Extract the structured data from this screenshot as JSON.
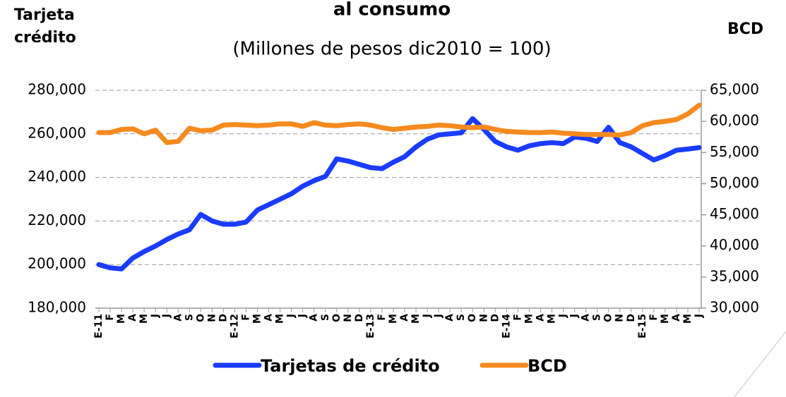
{
  "chart_data": {
    "type": "line",
    "title": "al consumo",
    "subtitle": "(Millones de pesos dic2010 = 100)",
    "ylabel": "Tarjeta crédito",
    "y2label": "BCD",
    "categories": [
      "E-11",
      "F",
      "M",
      "A",
      "M",
      "J",
      "J",
      "A",
      "S",
      "O",
      "N",
      "D",
      "E-12",
      "F",
      "M",
      "A",
      "M",
      "J",
      "J",
      "A",
      "S",
      "O",
      "N",
      "D",
      "E-13",
      "F",
      "M",
      "A",
      "M",
      "J",
      "J",
      "A",
      "S",
      "O",
      "N",
      "D",
      "E-14",
      "F",
      "M",
      "A",
      "M",
      "J",
      "J",
      "A",
      "S",
      "O",
      "N",
      "D",
      "E-15",
      "F",
      "M",
      "A",
      "M",
      "J"
    ],
    "series": [
      {
        "name": "Tarjetas de crédito",
        "color": "#1a3cff",
        "axis": "y",
        "values": [
          200000,
          198500,
          198000,
          203000,
          206000,
          208500,
          211500,
          214000,
          216000,
          223000,
          220000,
          218500,
          218500,
          219500,
          225000,
          227500,
          230000,
          232500,
          236000,
          238500,
          240500,
          248500,
          247500,
          246000,
          244500,
          244000,
          247000,
          249500,
          254000,
          257500,
          259500,
          260000,
          260500,
          267000,
          262000,
          256500,
          254000,
          252500,
          254500,
          255500,
          256000,
          255500,
          258500,
          258000,
          256500,
          263000,
          256000,
          254000,
          251000,
          248000,
          250000,
          252500,
          253000,
          253700
        ]
      },
      {
        "name": "BCD",
        "color": "#f58a1f",
        "axis": "y2",
        "values": [
          58200,
          58200,
          58700,
          58800,
          58000,
          58600,
          56600,
          56800,
          58900,
          58500,
          58600,
          59400,
          59500,
          59400,
          59300,
          59400,
          59600,
          59600,
          59200,
          59800,
          59400,
          59300,
          59500,
          59600,
          59400,
          59000,
          58700,
          58900,
          59100,
          59200,
          59400,
          59300,
          59100,
          59000,
          59100,
          58700,
          58400,
          58300,
          58200,
          58200,
          58300,
          58100,
          58000,
          57900,
          57900,
          57900,
          57800,
          58200,
          59300,
          59800,
          60000,
          60300,
          61200,
          62600
        ]
      }
    ],
    "ylim": [
      180000,
      280000
    ],
    "yticks": [
      {
        "value": 180000,
        "label": "180,000"
      },
      {
        "value": 200000,
        "label": "200,000"
      },
      {
        "value": 220000,
        "label": "220,000"
      },
      {
        "value": 240000,
        "label": "240,000"
      },
      {
        "value": 260000,
        "label": "260,000"
      },
      {
        "value": 280000,
        "label": "280,000"
      }
    ],
    "y2lim": [
      30000,
      65000
    ],
    "y2ticks": [
      {
        "value": 30000,
        "label": "30,000"
      },
      {
        "value": 35000,
        "label": "35,000"
      },
      {
        "value": 40000,
        "label": "40,000"
      },
      {
        "value": 45000,
        "label": "45,000"
      },
      {
        "value": 50000,
        "label": "50,000"
      },
      {
        "value": 55000,
        "label": "55,000"
      },
      {
        "value": 60000,
        "label": "60,000"
      },
      {
        "value": 65000,
        "label": "65,000"
      }
    ],
    "grid": true,
    "legend": "bottom"
  }
}
